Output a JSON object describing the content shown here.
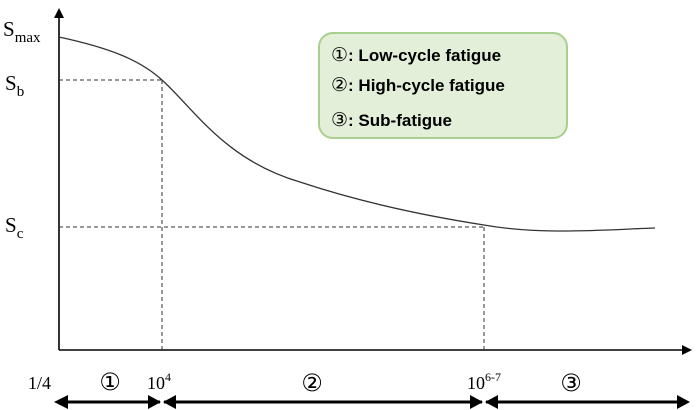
{
  "y_axis": {
    "labels": [
      {
        "key": "smax",
        "main": "S",
        "sub": "max"
      },
      {
        "key": "sb",
        "main": "S",
        "sub": "b"
      },
      {
        "key": "sc",
        "main": "S",
        "sub": "c"
      }
    ]
  },
  "x_axis": {
    "start_label": "1/4",
    "mark1": {
      "main": "10",
      "sup": "4"
    },
    "mark2": {
      "main": "10",
      "sup": "6-7"
    }
  },
  "regions": [
    {
      "symbol": "①"
    },
    {
      "symbol": "②"
    },
    {
      "symbol": "③"
    }
  ],
  "legend": {
    "items": [
      {
        "symbol": "①",
        "text": ": Low-cycle fatigue"
      },
      {
        "symbol": "②",
        "text": ": High-cycle fatigue"
      },
      {
        "symbol": "③",
        "text": ": Sub-fatigue"
      }
    ],
    "fill": "#e3efd9",
    "stroke": "#a9cf8f"
  }
}
